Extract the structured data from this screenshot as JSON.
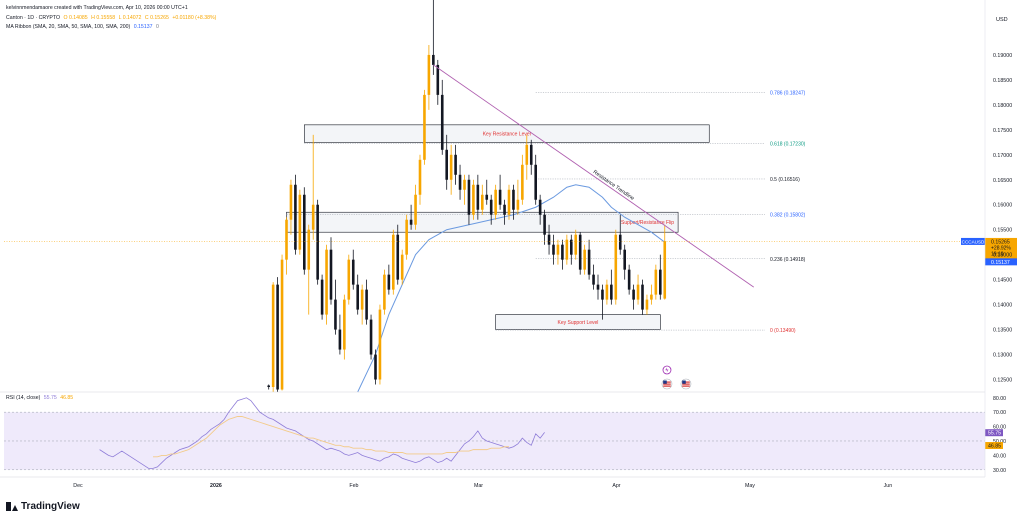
{
  "header": {
    "author_line": "kelvinnmendamaore created with TradingView.com, Apr 10, 2026 00:00 UTC+1",
    "symbol_line": "Canton · 1D · CRYPTO",
    "ohlc": {
      "o": "O 0.14085",
      "h": "H 0.15558",
      "l": "L 0.14072",
      "c": "C 0.15265",
      "chg": "+0.01180 (+8.38%)"
    },
    "ma_label": "MA Ribbon (SMA, 20, SMA, 50, SMA, 100, SMA, 200)",
    "ma_value": "0.15137",
    "ma_extra": "0",
    "rsi_label": "RSI (14, close)",
    "rsi_value": "55.75",
    "rsi_ma": "46.85"
  },
  "footer": {
    "brand": "TradingView"
  },
  "colors": {
    "up": "#f7a600",
    "down": "#131722",
    "ma": "#6b9ae0",
    "trend": "#b060b0",
    "fib_blue": "#2962ff",
    "fib_green": "#089981",
    "fib_black": "#131722",
    "fib_red": "#e03030",
    "rsi_line": "#8f7dd8",
    "rsi_ma": "#f3cb8a",
    "rsi_band": "#efeafb"
  },
  "chart_data": [
    {
      "type": "candlestick",
      "currency": "USD",
      "ylim": [
        0.1225,
        0.201
      ],
      "price_ticks": [
        0.125,
        0.13,
        0.135,
        0.14,
        0.145,
        0.15,
        0.155,
        0.16,
        0.165,
        0.17,
        0.175,
        0.18,
        0.185,
        0.19
      ],
      "x_labels": [
        {
          "label": "Dec",
          "day": 0
        },
        {
          "label": "2026",
          "day": 31
        },
        {
          "label": "Feb",
          "day": 62
        },
        {
          "label": "Mar",
          "day": 90
        },
        {
          "label": "Apr",
          "day": 121
        },
        {
          "label": "May",
          "day": 151
        },
        {
          "label": "Jun",
          "day": 182
        }
      ],
      "candles_note": "daily OHLC estimated from the chart",
      "candles": [
        [
          0.1238,
          0.124,
          0.123,
          0.1235
        ],
        [
          0.1235,
          0.1445,
          0.1225,
          0.144
        ],
        [
          0.144,
          0.1455,
          0.1225,
          0.123
        ],
        [
          0.123,
          0.15,
          0.1228,
          0.149
        ],
        [
          0.149,
          0.1575,
          0.146,
          0.157
        ],
        [
          0.157,
          0.165,
          0.154,
          0.164
        ],
        [
          0.164,
          0.166,
          0.15,
          0.151
        ],
        [
          0.151,
          0.163,
          0.15,
          0.162
        ],
        [
          0.162,
          0.1635,
          0.146,
          0.147
        ],
        [
          0.147,
          0.156,
          0.138,
          0.155
        ],
        [
          0.155,
          0.174,
          0.153,
          0.16
        ],
        [
          0.16,
          0.161,
          0.144,
          0.145
        ],
        [
          0.145,
          0.146,
          0.137,
          0.138
        ],
        [
          0.138,
          0.152,
          0.136,
          0.151
        ],
        [
          0.151,
          0.1535,
          0.14,
          0.141
        ],
        [
          0.141,
          0.145,
          0.134,
          0.135
        ],
        [
          0.135,
          0.138,
          0.13,
          0.131
        ],
        [
          0.131,
          0.142,
          0.129,
          0.141
        ],
        [
          0.141,
          0.15,
          0.14,
          0.149
        ],
        [
          0.149,
          0.151,
          0.143,
          0.144
        ],
        [
          0.144,
          0.146,
          0.138,
          0.139
        ],
        [
          0.139,
          0.144,
          0.136,
          0.143
        ],
        [
          0.143,
          0.145,
          0.136,
          0.137
        ],
        [
          0.137,
          0.138,
          0.129,
          0.13
        ],
        [
          0.13,
          0.131,
          0.124,
          0.125
        ],
        [
          0.125,
          0.14,
          0.124,
          0.139
        ],
        [
          0.139,
          0.147,
          0.138,
          0.146
        ],
        [
          0.146,
          0.148,
          0.142,
          0.143
        ],
        [
          0.143,
          0.155,
          0.142,
          0.154
        ],
        [
          0.154,
          0.156,
          0.144,
          0.145
        ],
        [
          0.145,
          0.151,
          0.144,
          0.15
        ],
        [
          0.15,
          0.158,
          0.149,
          0.157
        ],
        [
          0.157,
          0.16,
          0.155,
          0.156
        ],
        [
          0.156,
          0.164,
          0.155,
          0.162
        ],
        [
          0.162,
          0.17,
          0.16,
          0.169
        ],
        [
          0.169,
          0.183,
          0.168,
          0.182
        ],
        [
          0.182,
          0.192,
          0.179,
          0.19
        ],
        [
          0.19,
          0.201,
          0.186,
          0.188
        ],
        [
          0.188,
          0.189,
          0.18,
          0.182
        ],
        [
          0.182,
          0.185,
          0.17,
          0.171
        ],
        [
          0.171,
          0.174,
          0.163,
          0.165
        ],
        [
          0.165,
          0.172,
          0.162,
          0.17
        ],
        [
          0.17,
          0.172,
          0.164,
          0.166
        ],
        [
          0.166,
          0.168,
          0.161,
          0.163
        ],
        [
          0.163,
          0.166,
          0.16,
          0.165
        ],
        [
          0.165,
          0.166,
          0.156,
          0.158
        ],
        [
          0.158,
          0.165,
          0.157,
          0.164
        ],
        [
          0.164,
          0.166,
          0.157,
          0.159
        ],
        [
          0.159,
          0.164,
          0.158,
          0.162
        ],
        [
          0.162,
          0.165,
          0.16,
          0.161
        ],
        [
          0.161,
          0.162,
          0.156,
          0.158
        ],
        [
          0.158,
          0.164,
          0.157,
          0.163
        ],
        [
          0.163,
          0.166,
          0.159,
          0.16
        ],
        [
          0.16,
          0.161,
          0.156,
          0.158
        ],
        [
          0.158,
          0.164,
          0.157,
          0.163
        ],
        [
          0.163,
          0.164,
          0.157,
          0.159
        ],
        [
          0.159,
          0.165,
          0.158,
          0.161
        ],
        [
          0.161,
          0.17,
          0.16,
          0.168
        ],
        [
          0.168,
          0.174,
          0.165,
          0.172
        ],
        [
          0.172,
          0.173,
          0.166,
          0.168
        ],
        [
          0.168,
          0.17,
          0.16,
          0.161
        ],
        [
          0.161,
          0.162,
          0.156,
          0.158
        ],
        [
          0.158,
          0.159,
          0.152,
          0.154
        ],
        [
          0.154,
          0.156,
          0.15,
          0.152
        ],
        [
          0.152,
          0.154,
          0.148,
          0.15
        ],
        [
          0.15,
          0.153,
          0.148,
          0.152
        ],
        [
          0.152,
          0.153,
          0.147,
          0.149
        ],
        [
          0.149,
          0.154,
          0.148,
          0.153
        ],
        [
          0.153,
          0.154,
          0.148,
          0.15
        ],
        [
          0.15,
          0.155,
          0.149,
          0.154
        ],
        [
          0.154,
          0.1545,
          0.146,
          0.147
        ],
        [
          0.147,
          0.152,
          0.146,
          0.151
        ],
        [
          0.151,
          0.153,
          0.145,
          0.146
        ],
        [
          0.146,
          0.148,
          0.143,
          0.144
        ],
        [
          0.144,
          0.146,
          0.141,
          0.143
        ],
        [
          0.143,
          0.144,
          0.137,
          0.141
        ],
        [
          0.141,
          0.145,
          0.14,
          0.144
        ],
        [
          0.144,
          0.147,
          0.14,
          0.141
        ],
        [
          0.141,
          0.155,
          0.14,
          0.154
        ],
        [
          0.154,
          0.158,
          0.15,
          0.151
        ],
        [
          0.151,
          0.152,
          0.145,
          0.147
        ],
        [
          0.147,
          0.148,
          0.142,
          0.143
        ],
        [
          0.143,
          0.144,
          0.139,
          0.141
        ],
        [
          0.141,
          0.146,
          0.14,
          0.144
        ],
        [
          0.144,
          0.145,
          0.138,
          0.139
        ],
        [
          0.139,
          0.142,
          0.138,
          0.141
        ],
        [
          0.141,
          0.144,
          0.14,
          0.142
        ],
        [
          0.142,
          0.148,
          0.141,
          0.147
        ],
        [
          0.147,
          0.15,
          0.141,
          0.142
        ],
        [
          0.1412,
          0.156,
          0.141,
          0.1527
        ]
      ],
      "ma_series": [
        [
          20,
          0.1225
        ],
        [
          24,
          0.13
        ],
        [
          27,
          0.138
        ],
        [
          30,
          0.144
        ],
        [
          33,
          0.15
        ],
        [
          36,
          0.153
        ],
        [
          40,
          0.155
        ],
        [
          45,
          0.156
        ],
        [
          50,
          0.157
        ],
        [
          55,
          0.158
        ],
        [
          60,
          0.1595
        ],
        [
          64,
          0.1615
        ],
        [
          67,
          0.1635
        ],
        [
          69,
          0.164
        ],
        [
          72,
          0.1635
        ],
        [
          75,
          0.1615
        ],
        [
          77,
          0.1595
        ],
        [
          80,
          0.1575
        ],
        [
          83,
          0.156
        ],
        [
          86,
          0.1545
        ],
        [
          89,
          0.1525
        ]
      ],
      "trendline": {
        "label": "Resistance Trendline",
        "start": [
          37,
          0.188
        ],
        "end": [
          109,
          0.1435
        ]
      },
      "zones": [
        {
          "label": "Key Resistance Level",
          "x": [
            8,
            99
          ],
          "y": [
            0.1725,
            0.176
          ]
        },
        {
          "label": "Support/Resistance Flip",
          "x": [
            4,
            92
          ],
          "y": [
            0.1545,
            0.1585
          ]
        },
        {
          "label": "Key Support Level",
          "x": [
            51,
            88
          ],
          "y": [
            0.135,
            0.138
          ]
        }
      ],
      "fib_levels": [
        {
          "label": "0.786 (0.18247)",
          "value": 0.18247,
          "x_start": 60,
          "color_key": "fib_blue"
        },
        {
          "label": "0.618 (0.17230)",
          "value": 0.1723,
          "x_start": 8,
          "color_key": "fib_green"
        },
        {
          "label": "0.5 (0.16516)",
          "value": 0.16516,
          "x_start": 60,
          "color_key": "fib_black"
        },
        {
          "label": "0.382 (0.15802)",
          "value": 0.15802,
          "x_start": 4,
          "color_key": "fib_blue"
        },
        {
          "label": "0.236 (0.14918)",
          "value": 0.14918,
          "x_start": 60,
          "color_key": "fib_black"
        },
        {
          "label": "0 (0.13490)",
          "value": 0.1349,
          "x_start": 51,
          "color_key": "fib_red"
        }
      ],
      "last_price": {
        "label": "CCCAUSD",
        "value": 0.15265,
        "text": "0.15265",
        "change": "+28.92%",
        "countdown": "19:19"
      },
      "ma_price": {
        "value": 0.15137,
        "text": "0.15137"
      }
    },
    {
      "type": "line",
      "name": "RSI (14, close)",
      "ylim": [
        25,
        84
      ],
      "ticks": [
        30,
        40,
        50,
        60,
        70,
        80
      ],
      "bands": [
        30,
        50,
        70
      ],
      "rsi": [
        44,
        42,
        40,
        39,
        41,
        43,
        41,
        39,
        37,
        35,
        33,
        31,
        31,
        32,
        35,
        38,
        40,
        42,
        44,
        45,
        46,
        48,
        50,
        53,
        55,
        58,
        60,
        62,
        65,
        70,
        74,
        78,
        79,
        80,
        78,
        74,
        70,
        68,
        66,
        65,
        63,
        61,
        59,
        58,
        57,
        55,
        53,
        51,
        50,
        48,
        46,
        44,
        45,
        44,
        43,
        41,
        40,
        41,
        42,
        40,
        39,
        38,
        37,
        36,
        38,
        39,
        41,
        40,
        38,
        37,
        36,
        35,
        36,
        38,
        39,
        37,
        35,
        36,
        38,
        36,
        40,
        44,
        48,
        50,
        53,
        57,
        52,
        50,
        49,
        48,
        47,
        46,
        45,
        46,
        48,
        52,
        49,
        47,
        55,
        52,
        56
      ],
      "rsi_ma": [
        39,
        39,
        40,
        40,
        41,
        41,
        42,
        43,
        44,
        46,
        48,
        50,
        52,
        55,
        58,
        61,
        63,
        65,
        66,
        67,
        67,
        66,
        65,
        64,
        63,
        62,
        61,
        60,
        59,
        58,
        57,
        56,
        55,
        54,
        53,
        52,
        52,
        51,
        50,
        49,
        48,
        47,
        47,
        46,
        46,
        45,
        45,
        45,
        44,
        44,
        43,
        43,
        43,
        42,
        42,
        42,
        42,
        41,
        41,
        41,
        41,
        41,
        41,
        41,
        41,
        41,
        42,
        42,
        42,
        43,
        43,
        43,
        44,
        44,
        44,
        44,
        45,
        45,
        45,
        46,
        46
      ],
      "current": {
        "rsi": "55.75",
        "ma": "46.85"
      }
    }
  ]
}
